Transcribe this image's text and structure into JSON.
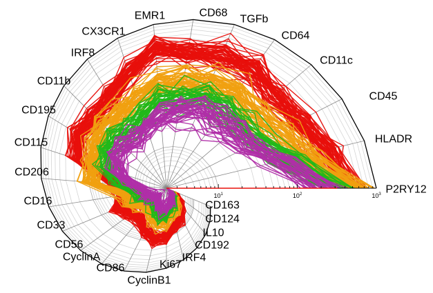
{
  "chart_data": {
    "type": "radar",
    "scale": "log",
    "rlim": [
      2.2,
      1000
    ],
    "tick_labels": [
      {
        "base": "10",
        "exp": "1",
        "value": 10
      },
      {
        "base": "10",
        "exp": "2",
        "value": 100
      },
      {
        "base": "10",
        "exp": "3",
        "value": 1000
      }
    ],
    "axes": [
      "P2RY12",
      "HLADR",
      "CD45",
      "CD11c",
      "CD64",
      "TGFb",
      "CD68",
      "EMR1",
      "CX3CR1",
      "IRF8",
      "CD11b",
      "CD195",
      "CD115",
      "CD206",
      "CD16",
      "CD33",
      "CD56",
      "CyclinA",
      "CD86",
      "CyclinB1",
      "Ki67",
      "IRF4",
      "CD192",
      "IL10",
      "CD124",
      "CD163"
    ],
    "series": [
      {
        "name": "red",
        "color": "#e8100c",
        "count": 60,
        "values": [
          400,
          300,
          220,
          200,
          300,
          300,
          300,
          400,
          230,
          160,
          160,
          220,
          160,
          25,
          19,
          35,
          25,
          25,
          47,
          87,
          87,
          47,
          47,
          25,
          14,
          7.5
        ]
      },
      {
        "name": "orange",
        "color": "#f0a010",
        "count": 50,
        "values": [
          600,
          160,
          110,
          90,
          120,
          120,
          110,
          110,
          90,
          80,
          90,
          100,
          80,
          90,
          20,
          18,
          12,
          12,
          20,
          30,
          30,
          20,
          20,
          12,
          8,
          5
        ]
      },
      {
        "name": "green",
        "color": "#22b81a",
        "count": 40,
        "values": [
          300,
          100,
          60,
          50,
          60,
          70,
          60,
          60,
          45,
          40,
          45,
          50,
          40,
          20,
          10,
          10,
          7,
          7,
          12,
          18,
          18,
          12,
          12,
          8,
          6,
          4
        ]
      },
      {
        "name": "purple",
        "color": "#b02ea8",
        "count": 40,
        "values": [
          200,
          70,
          40,
          35,
          35,
          40,
          35,
          30,
          25,
          22,
          25,
          28,
          22,
          10,
          7,
          6,
          5,
          5,
          7,
          9,
          9,
          7,
          7,
          5,
          4,
          3.5
        ]
      }
    ]
  }
}
